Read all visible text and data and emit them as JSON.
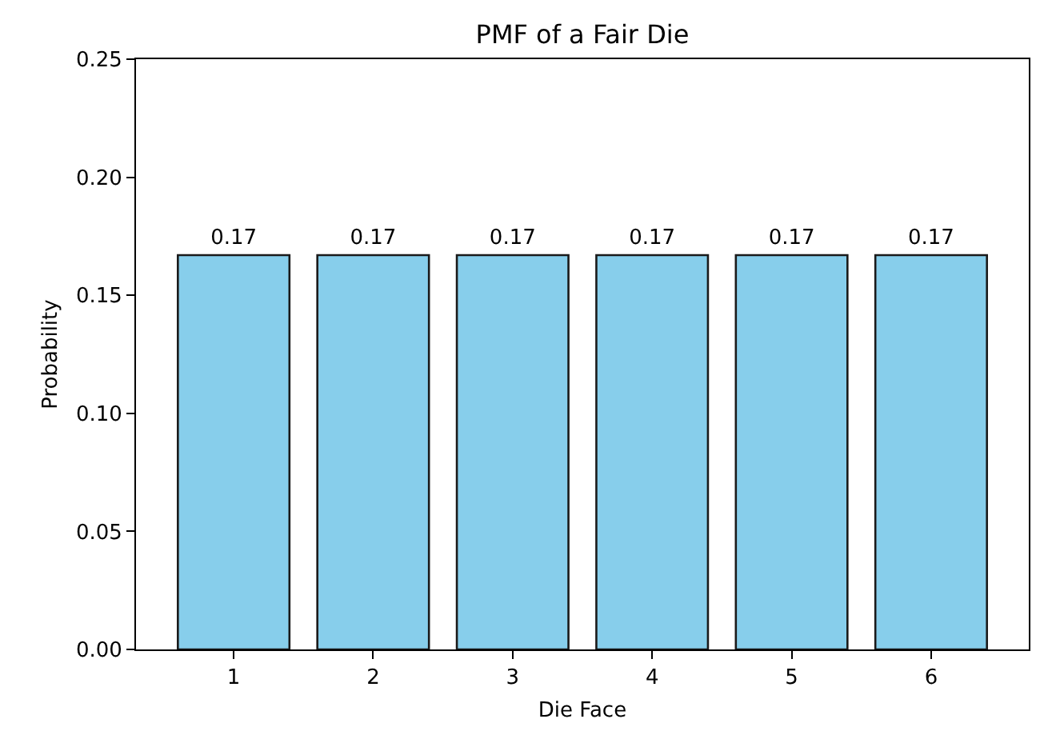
{
  "chart_data": {
    "type": "bar",
    "title": "PMF of a Fair Die",
    "xlabel": "Die Face",
    "ylabel": "Probability",
    "categories": [
      "1",
      "2",
      "3",
      "4",
      "5",
      "6"
    ],
    "values": [
      0.167,
      0.167,
      0.167,
      0.167,
      0.167,
      0.167
    ],
    "value_labels": [
      "0.17",
      "0.17",
      "0.17",
      "0.17",
      "0.17",
      "0.17"
    ],
    "color": "#87ceeb",
    "ylim": [
      0,
      0.25
    ],
    "yticks": [
      {
        "value": 0,
        "label": "0.00"
      },
      0.05,
      {
        "value": 0.1,
        "label": "0.10"
      },
      0.15,
      {
        "value": 0.2,
        "label": "0.20"
      },
      0.25
    ]
  }
}
